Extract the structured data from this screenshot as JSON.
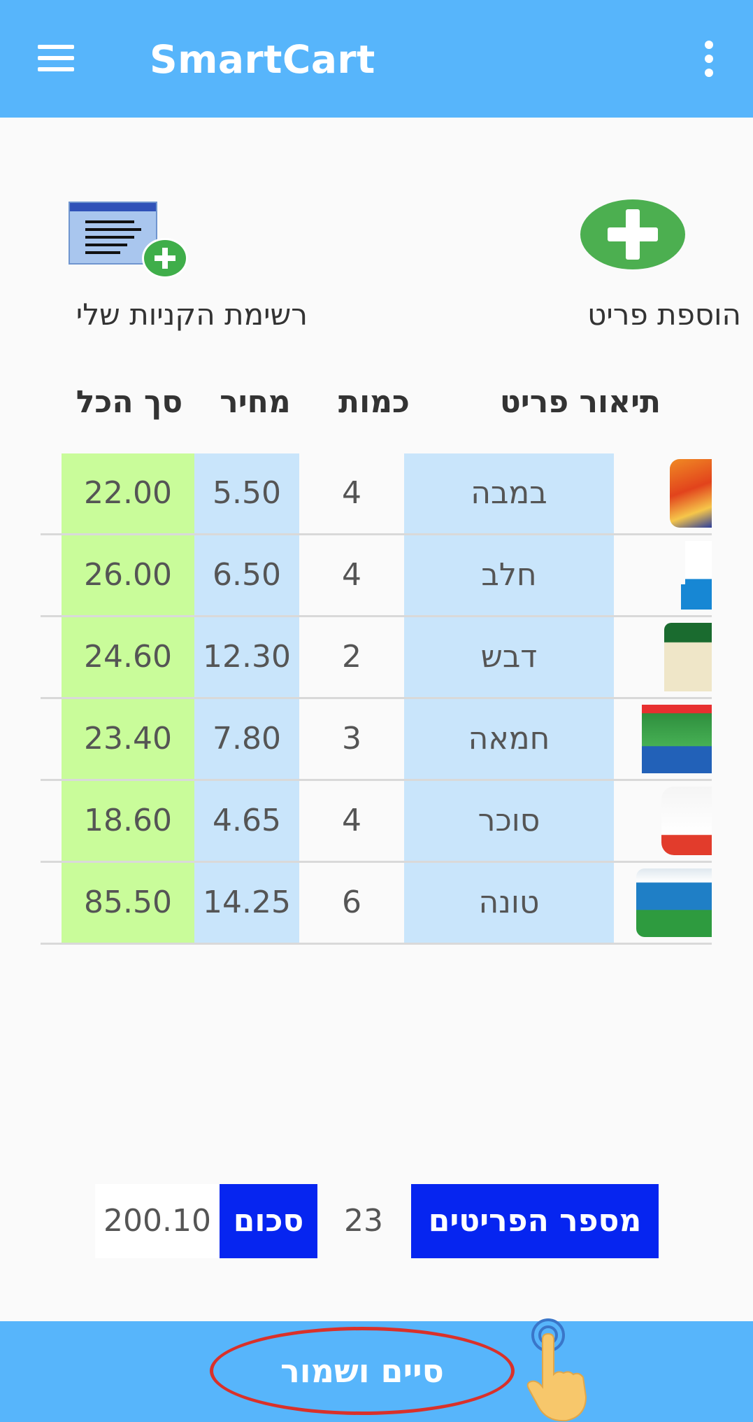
{
  "app": {
    "title": "SmartCart"
  },
  "actions": {
    "add_item_label": "הוספת פריט",
    "my_list_label": "רשימת הקניות שלי"
  },
  "table": {
    "headers": {
      "description": "תיאור פריט",
      "quantity": "כמות",
      "price": "מחיר",
      "total": "סך הכל"
    },
    "rows": [
      {
        "description": "במבה",
        "quantity": "4",
        "price": "5.50",
        "total": "22.00"
      },
      {
        "description": "חלב",
        "quantity": "4",
        "price": "6.50",
        "total": "26.00"
      },
      {
        "description": "דבש",
        "quantity": "2",
        "price": "12.30",
        "total": "24.60"
      },
      {
        "description": "חמאה",
        "quantity": "3",
        "price": "7.80",
        "total": "23.40"
      },
      {
        "description": "סוכר",
        "quantity": "4",
        "price": "4.65",
        "total": "18.60"
      },
      {
        "description": "טונה",
        "quantity": "6",
        "price": "14.25",
        "total": "85.50"
      }
    ]
  },
  "summary": {
    "item_count_label": "מספר הפריטים",
    "item_count": "23",
    "sum_label": "סכום",
    "sum_value": "200.10"
  },
  "footer": {
    "finish_label": "סיים ושמור"
  },
  "colors": {
    "app_bar": "#57b5fb",
    "total_column": "#c9fc9a",
    "highlight_column": "#c9e5fb",
    "summary_label": "#0625f0"
  }
}
